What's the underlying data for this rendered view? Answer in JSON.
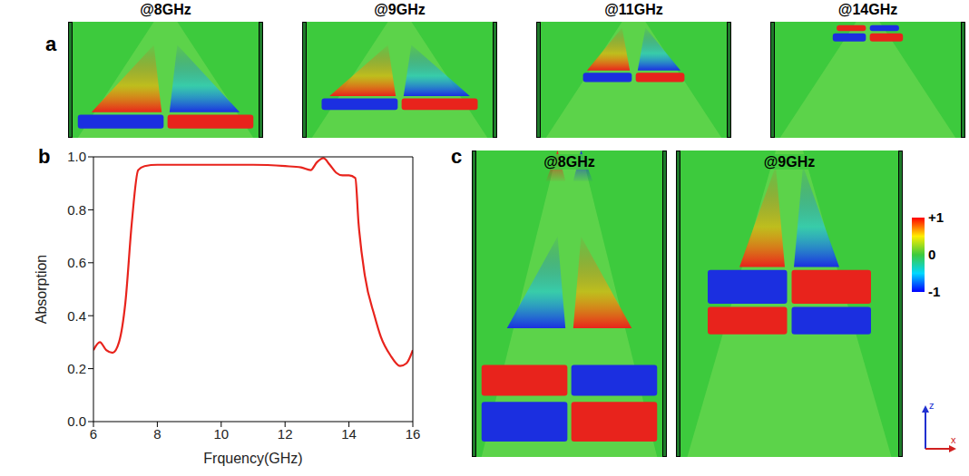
{
  "chart_data": {
    "type": "line",
    "xlabel": "Frquency(GHz)",
    "ylabel": "Absorption",
    "color": "#e8231c",
    "x": [
      6.0,
      6.2,
      6.4,
      6.6,
      6.8,
      7.0,
      7.2,
      7.4,
      7.6,
      8.0,
      9.0,
      10.0,
      11.0,
      12.0,
      12.5,
      12.8,
      13.0,
      13.2,
      13.4,
      13.6,
      13.8,
      14.0,
      14.2,
      14.3,
      14.5,
      14.8,
      15.0,
      15.3,
      15.6,
      15.8,
      16.0
    ],
    "values": [
      0.27,
      0.3,
      0.27,
      0.26,
      0.3,
      0.45,
      0.75,
      0.95,
      0.965,
      0.97,
      0.97,
      0.97,
      0.97,
      0.965,
      0.96,
      0.95,
      0.98,
      0.995,
      0.97,
      0.94,
      0.93,
      0.93,
      0.92,
      0.75,
      0.55,
      0.4,
      0.32,
      0.25,
      0.21,
      0.22,
      0.27
    ],
    "xlim": [
      6,
      16
    ],
    "xticks": [
      6,
      8,
      10,
      12,
      14,
      16
    ],
    "ylim": [
      0,
      1
    ],
    "yticks": [
      {
        "value": 0,
        "label": "0.0"
      },
      0.2,
      0.4,
      0.6,
      0.8,
      {
        "value": 1,
        "label": "1.0"
      }
    ],
    "grid": false
  },
  "figure": {
    "panel_a": {
      "label": "a",
      "maps": [
        "@8GHz",
        "@9GHz",
        "@11GHz",
        "@14GHz"
      ]
    },
    "panel_b": {
      "label": "b"
    },
    "panel_c": {
      "label": "c",
      "maps": [
        "@8GHz",
        "@9GHz"
      ]
    },
    "colorbar": {
      "range": [
        -1,
        1
      ],
      "ticks": [
        {
          "value": 1,
          "label": "+1"
        },
        0,
        -1
      ]
    },
    "axes": {
      "vertical": "z",
      "horizontal": "x"
    }
  }
}
